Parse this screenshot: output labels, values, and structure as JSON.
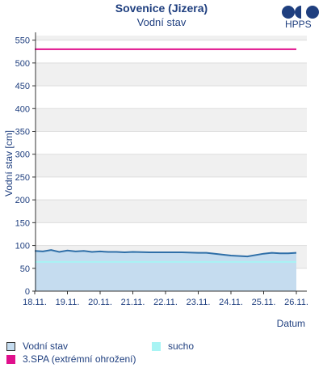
{
  "chart_data": {
    "type": "line",
    "title": "Sovenice (Jizera)",
    "subtitle": "Vodní stav",
    "xlabel": "Datum",
    "ylabel": "Vodní stav [cm]",
    "ylim": [
      0,
      560
    ],
    "yticks": [
      0,
      50,
      100,
      150,
      200,
      250,
      300,
      350,
      400,
      450,
      500,
      550
    ],
    "xlim": [
      "2024-11-18",
      "2024-11-26"
    ],
    "xtick_labels": [
      "18.11.",
      "19.11.",
      "20.11.",
      "21.11.",
      "22.11.",
      "23.11.",
      "24.11.",
      "25.11.",
      "26.11."
    ],
    "grid": "horizontal alternating bands",
    "legend_placement": "bottom",
    "series": [
      {
        "name": "Vodní stav",
        "color": "#2f6fa8",
        "fill": "#c5dcef",
        "x": [
          "2024-11-18 00:00",
          "2024-11-18 06:00",
          "2024-11-18 12:00",
          "2024-11-18 18:00",
          "2024-11-19 00:00",
          "2024-11-19 06:00",
          "2024-11-19 12:00",
          "2024-11-19 18:00",
          "2024-11-20 00:00",
          "2024-11-20 06:00",
          "2024-11-20 12:00",
          "2024-11-20 18:00",
          "2024-11-21 00:00",
          "2024-11-21 12:00",
          "2024-11-22 00:00",
          "2024-11-22 12:00",
          "2024-11-23 00:00",
          "2024-11-23 06:00",
          "2024-11-23 12:00",
          "2024-11-23 18:00",
          "2024-11-24 00:00",
          "2024-11-24 12:00",
          "2024-11-25 00:00",
          "2024-11-25 06:00",
          "2024-11-25 12:00",
          "2024-11-25 18:00",
          "2024-11-26 00:00"
        ],
        "values": [
          88,
          87,
          90,
          86,
          89,
          87,
          88,
          86,
          87,
          86,
          86,
          85,
          86,
          85,
          85,
          85,
          84,
          84,
          82,
          80,
          78,
          76,
          82,
          84,
          83,
          83,
          84
        ]
      },
      {
        "name": "3.SPA (extrémní ohrožení)",
        "color": "#e0108c",
        "x": [
          "2024-11-18 00:00",
          "2024-11-26 00:00"
        ],
        "values": [
          530,
          530
        ]
      },
      {
        "name": "sucho",
        "color": "#a8f4f4",
        "x": [
          "2024-11-18 00:00",
          "2024-11-26 00:00"
        ],
        "values": [
          64,
          64
        ]
      }
    ]
  },
  "brand": {
    "logo_text": "HPPS"
  }
}
